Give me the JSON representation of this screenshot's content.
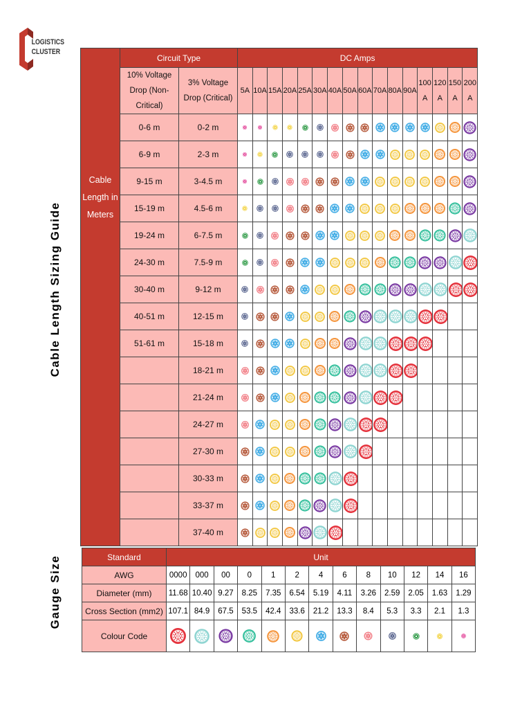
{
  "logo": {
    "line1": "LOGISTICS",
    "line2": "CLUSTER"
  },
  "sizing_guide": {
    "side_title": "Cable Length Sizing Guide",
    "row_header": "Cable Length in Meters",
    "circuit_type": "Circuit Type",
    "dc_amps": "DC Amps",
    "col_noncritical": "10% Voltage Drop (Non-Critical)",
    "col_critical": "3% Voltage Drop (Critical)",
    "amps": [
      "5A",
      "10A",
      "15A",
      "20A",
      "25A",
      "30A",
      "40A",
      "50A",
      "60A",
      "70A",
      "80A",
      "90A",
      "100 A",
      "120 A",
      "150 A",
      "200 A"
    ],
    "rows": [
      {
        "noncritical": "0-6 m",
        "critical": "0-2 m",
        "gauges": [
          "16",
          "16",
          "14",
          "14",
          "12",
          "10",
          "8",
          "6",
          "6",
          "4",
          "4",
          "4",
          "4",
          "2",
          "1",
          "00"
        ]
      },
      {
        "noncritical": "6-9 m",
        "critical": "2-3 m",
        "gauges": [
          "16",
          "14",
          "12",
          "10",
          "10",
          "10",
          "8",
          "6",
          "4",
          "4",
          "2",
          "2",
          "2",
          "1",
          "1",
          "00"
        ]
      },
      {
        "noncritical": "9-15 m",
        "critical": "3-4.5 m",
        "gauges": [
          "16",
          "12",
          "10",
          "8",
          "8",
          "6",
          "6",
          "4",
          "4",
          "2",
          "2",
          "2",
          "2",
          "1",
          "1",
          "00"
        ]
      },
      {
        "noncritical": "15-19 m",
        "critical": "4.5-6 m",
        "gauges": [
          "14",
          "10",
          "10",
          "8",
          "6",
          "6",
          "4",
          "4",
          "2",
          "2",
          "2",
          "1",
          "1",
          "1",
          "0",
          "00"
        ]
      },
      {
        "noncritical": "19-24 m",
        "critical": "6-7.5 m",
        "gauges": [
          "12",
          "10",
          "8",
          "6",
          "6",
          "4",
          "4",
          "2",
          "2",
          "2",
          "1",
          "1",
          "0",
          "0",
          "00",
          "000"
        ]
      },
      {
        "noncritical": "24-30 m",
        "critical": "7.5-9 m",
        "gauges": [
          "12",
          "10",
          "8",
          "6",
          "4",
          "4",
          "2",
          "2",
          "2",
          "1",
          "0",
          "0",
          "00",
          "00",
          "000",
          "0000"
        ]
      },
      {
        "noncritical": "30-40 m",
        "critical": "9-12 m",
        "gauges": [
          "10",
          "8",
          "6",
          "6",
          "4",
          "2",
          "2",
          "1",
          "0",
          "0",
          "00",
          "00",
          "000",
          "000",
          "0000",
          "0000"
        ]
      },
      {
        "noncritical": "40-51 m",
        "critical": "12-15 m",
        "gauges": [
          "10",
          "6",
          "6",
          "4",
          "2",
          "2",
          "1",
          "0",
          "00",
          "000",
          "000",
          "000",
          "0000",
          "0000",
          null,
          null
        ]
      },
      {
        "noncritical": "51-61 m",
        "critical": "15-18 m",
        "gauges": [
          "10",
          "6",
          "4",
          "4",
          "2",
          "1",
          "1",
          "00",
          "000",
          "000",
          "0000",
          "0000",
          "0000",
          null,
          null,
          null
        ]
      },
      {
        "critical": "18-21 m",
        "gauges": [
          "8",
          "6",
          "4",
          "2",
          "2",
          "1",
          "0",
          "00",
          "000",
          "000",
          "0000",
          "0000",
          null,
          null,
          null,
          null
        ]
      },
      {
        "critical": "21-24 m",
        "gauges": [
          "8",
          "6",
          "4",
          "2",
          "1",
          "0",
          "0",
          "00",
          "000",
          "0000",
          "0000",
          null,
          null,
          null,
          null,
          null
        ]
      },
      {
        "critical": "24-27 m",
        "gauges": [
          "8",
          "4",
          "2",
          "2",
          "1",
          "0",
          "00",
          "000",
          "0000",
          "0000",
          null,
          null,
          null,
          null,
          null,
          null
        ]
      },
      {
        "critical": "27-30 m",
        "gauges": [
          "6",
          "4",
          "2",
          "2",
          "1",
          "0",
          "00",
          "000",
          "0000",
          null,
          null,
          null,
          null,
          null,
          null,
          null
        ]
      },
      {
        "critical": "30-33 m",
        "gauges": [
          "6",
          "4",
          "2",
          "1",
          "0",
          "0",
          "000",
          "0000",
          null,
          null,
          null,
          null,
          null,
          null,
          null,
          null
        ]
      },
      {
        "critical": "33-37 m",
        "gauges": [
          "6",
          "4",
          "2",
          "1",
          "0",
          "00",
          "000",
          "0000",
          null,
          null,
          null,
          null,
          null,
          null,
          null,
          null
        ]
      },
      {
        "critical": "37-40 m",
        "gauges": [
          "6",
          "2",
          "2",
          "1",
          "00",
          "000",
          "0000",
          null,
          null,
          null,
          null,
          null,
          null,
          null,
          null,
          null
        ]
      }
    ]
  },
  "gauge_table": {
    "side_title": "Gauge Size",
    "standard": "Standard",
    "unit": "Unit",
    "rows": [
      {
        "label": "AWG",
        "values": [
          "0000",
          "000",
          "00",
          "0",
          "1",
          "2",
          "4",
          "6",
          "8",
          "10",
          "12",
          "14",
          "16"
        ]
      },
      {
        "label": "Diameter (mm)",
        "values": [
          "11.68",
          "10.40",
          "9.27",
          "8.25",
          "7.35",
          "6.54",
          "5.19",
          "4.11",
          "3.26",
          "2.59",
          "2.05",
          "1.63",
          "1.29"
        ]
      },
      {
        "label": "Cross Section (mm2)",
        "values": [
          "107.1",
          "84.9",
          "67.5",
          "53.5",
          "42.4",
          "33.6",
          "21.2",
          "13.3",
          "8.4",
          "5.3",
          "3.3",
          "2.1",
          "1.3"
        ]
      }
    ],
    "colour_code_label": "Colour Code",
    "colors": [
      "#e5323c",
      "#8fd5d2",
      "#7a3aa3",
      "#35c09d",
      "#f5943a",
      "#f2c53a",
      "#45aee6",
      "#b65a3c",
      "#f28088",
      "#5b6790",
      "#2f9a47",
      "#f2d13a",
      "#e0338f"
    ]
  }
}
